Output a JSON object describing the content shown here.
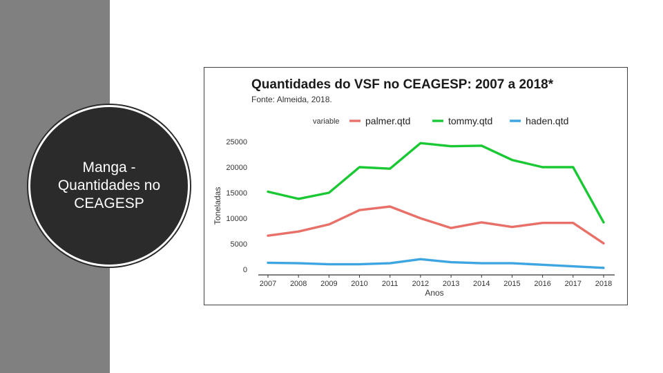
{
  "slide": {
    "title": "Manga - Quantidades no CEAGESP"
  },
  "chart_data": {
    "type": "line",
    "title": "Quantidades do VSF no CEAGESP: 2007 a 2018*",
    "subtitle": "Fonte: Almeida, 2018.",
    "xlabel": "Anos",
    "ylabel": "Toneladas",
    "legend_title": "variable",
    "legend_position": "top",
    "categories": [
      "2007",
      "2008",
      "2009",
      "2010",
      "2011",
      "2012",
      "2013",
      "2014",
      "2015",
      "2016",
      "2017",
      "2018"
    ],
    "yticks": [
      "0",
      "5000",
      "10000",
      "15000",
      "20000",
      "25000"
    ],
    "ylim": [
      0,
      25000
    ],
    "series": [
      {
        "name": "palmer.qtd",
        "color": "#E87068",
        "values": [
          6600,
          7400,
          8800,
          11600,
          12300,
          10000,
          8100,
          9200,
          8300,
          9100,
          9100,
          5100
        ]
      },
      {
        "name": "tommy.qtd",
        "color": "#19C832",
        "values": [
          15200,
          13800,
          15000,
          20000,
          19700,
          24700,
          24100,
          24200,
          21400,
          20000,
          20000,
          9200
        ]
      },
      {
        "name": "haden.qtd",
        "color": "#3DA5E0",
        "values": [
          1300,
          1200,
          1000,
          1000,
          1200,
          2000,
          1400,
          1200,
          1200,
          900,
          600,
          300
        ]
      }
    ]
  }
}
